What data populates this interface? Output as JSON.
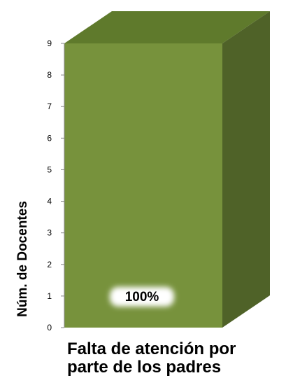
{
  "chart_data": {
    "type": "bar",
    "categories": [
      "Falta de atención por parte de los padres"
    ],
    "category_lines": [
      "Falta de atención por",
      "parte de los padres"
    ],
    "values": [
      9
    ],
    "data_labels": [
      "100%"
    ],
    "ylabel": "Núm. de Docentes",
    "ylim": [
      0,
      9
    ],
    "yticks": [
      0,
      1,
      2,
      3,
      4,
      5,
      6,
      7,
      8,
      9
    ],
    "grid": false,
    "bar_style": "3d"
  },
  "colors": {
    "bar_front": "#77923c",
    "bar_top": "#5f7a2c",
    "bar_side": "#4f6228",
    "axis": "#868686"
  }
}
